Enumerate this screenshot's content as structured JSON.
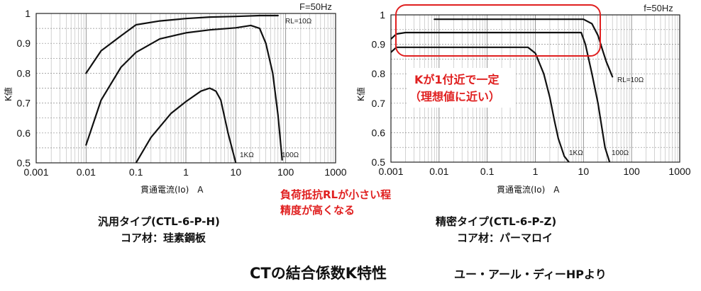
{
  "chart_data": [
    {
      "type": "line",
      "title": "",
      "frequency_label": "F=50Hz",
      "xlabel": "貫通電流(Io)　A",
      "ylabel": "K値",
      "x_scale": "log",
      "xlim": [
        0.001,
        1000
      ],
      "ylim": [
        0.5,
        1.0
      ],
      "x_tick_labels": [
        "0.001",
        "0.01",
        "0.1",
        "1",
        "10",
        "100",
        "1000"
      ],
      "y_tick_labels": [
        "0.5",
        "0.6",
        "0.7",
        "0.8",
        "0.9",
        "1"
      ],
      "series": [
        {
          "name": "RL=10Ω",
          "x": [
            0.01,
            0.02,
            0.05,
            0.1,
            0.3,
            1,
            3,
            10,
            30,
            70
          ],
          "y": [
            0.8,
            0.875,
            0.925,
            0.962,
            0.975,
            0.983,
            0.988,
            0.99,
            0.993,
            0.993
          ]
        },
        {
          "name": "100Ω",
          "x": [
            0.01,
            0.02,
            0.05,
            0.1,
            0.3,
            1,
            3,
            10,
            20,
            30,
            40,
            55,
            70,
            85
          ],
          "y": [
            0.56,
            0.71,
            0.82,
            0.87,
            0.915,
            0.935,
            0.945,
            0.952,
            0.96,
            0.95,
            0.9,
            0.8,
            0.66,
            0.51
          ]
        },
        {
          "name": "1KΩ",
          "x": [
            0.1,
            0.2,
            0.5,
            1,
            2,
            3,
            4,
            5,
            7,
            10
          ],
          "y": [
            0.5,
            0.585,
            0.665,
            0.705,
            0.74,
            0.75,
            0.74,
            0.71,
            0.6,
            0.5
          ]
        }
      ]
    },
    {
      "type": "line",
      "title": "",
      "frequency_label": "f=50Hz",
      "xlabel": "貫通電流(Io)　A",
      "ylabel": "K値",
      "x_scale": "log",
      "xlim": [
        0.001,
        1000
      ],
      "ylim": [
        0.5,
        1.0
      ],
      "x_tick_labels": [
        "0.001",
        "0.01",
        "0.1",
        "1",
        "10",
        "100",
        "1000"
      ],
      "y_tick_labels": [
        "0.5",
        "0.6",
        "0.7",
        "0.8",
        "0.9",
        "1"
      ],
      "series": [
        {
          "name": "RL=10Ω",
          "x": [
            0.008,
            0.02,
            0.1,
            1,
            5,
            10,
            15,
            20,
            25,
            30,
            40
          ],
          "y": [
            0.985,
            0.985,
            0.985,
            0.985,
            0.985,
            0.985,
            0.97,
            0.93,
            0.88,
            0.84,
            0.79
          ]
        },
        {
          "name": "100Ω",
          "x": [
            0.001,
            0.0013,
            0.002,
            0.01,
            0.1,
            1,
            5,
            9,
            11,
            15,
            20,
            28,
            35
          ],
          "y": [
            0.918,
            0.935,
            0.94,
            0.94,
            0.94,
            0.94,
            0.94,
            0.94,
            0.9,
            0.8,
            0.7,
            0.55,
            0.5
          ]
        },
        {
          "name": "1KΩ",
          "x": [
            0.001,
            0.0013,
            0.002,
            0.01,
            0.1,
            0.7,
            1,
            1.5,
            2,
            2.5,
            3,
            4,
            5
          ],
          "y": [
            0.873,
            0.89,
            0.89,
            0.89,
            0.89,
            0.89,
            0.87,
            0.8,
            0.72,
            0.64,
            0.58,
            0.52,
            0.5
          ]
        }
      ],
      "annotation": [
        "Kが1付近で一定",
        "（理想値に近い）"
      ],
      "highlight_color": "#e02020"
    }
  ],
  "labels": {
    "left_curve_labels": [
      "RL=10Ω",
      "1KΩ",
      "100Ω"
    ],
    "right_curve_labels": [
      "RL=10Ω",
      "1KΩ",
      "100Ω"
    ]
  },
  "captions": {
    "left_type": "汎用タイプ(CTL-6-P-H)",
    "left_core": "コア材：珪素鋼板",
    "right_type": "精密タイプ(CTL-6-P-Z)",
    "right_core": "コア材：パーマロイ",
    "middle_note_line1": "負荷抵抗RLが小さい程",
    "middle_note_line2": "精度が高くなる",
    "main_title": "CTの結合係数K特性",
    "source": "ユー・アール・ディーHPより"
  },
  "colors": {
    "accent_red": "#e02020",
    "curve": "#111111",
    "grid": "#8c8c8c"
  }
}
